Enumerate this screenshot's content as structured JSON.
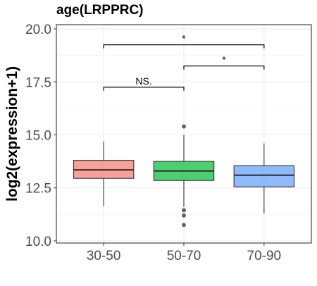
{
  "chart_data": {
    "type": "box",
    "title": "age(LRPPRC)",
    "xlabel": "",
    "ylabel": "log2(expression+1)",
    "ylim": [
      9.9,
      20.2
    ],
    "yticks": [
      10.0,
      12.5,
      15.0,
      17.5,
      20.0
    ],
    "ytick_labels": [
      "10.0",
      "12.5",
      "15.0",
      "17.5",
      "20.0"
    ],
    "grid": true,
    "legend": "none",
    "categories": [
      "30-50",
      "50-70",
      "70-90"
    ],
    "boxes": [
      {
        "category": "30-50",
        "color": "#F8766D",
        "whisker_low": 11.65,
        "q1": 12.95,
        "median": 13.35,
        "q3": 13.8,
        "whisker_high": 14.7,
        "outliers": []
      },
      {
        "category": "50-70",
        "color": "#00BA38",
        "whisker_low": 11.6,
        "q1": 12.85,
        "median": 13.3,
        "q3": 13.75,
        "whisker_high": 15.0,
        "outliers": [
          15.4,
          11.45,
          11.2,
          10.75
        ]
      },
      {
        "category": "70-90",
        "color": "#619CFF",
        "whisker_low": 11.3,
        "q1": 12.55,
        "median": 13.1,
        "q3": 13.55,
        "whisker_high": 14.6,
        "outliers": []
      }
    ],
    "comparisons": [
      {
        "from": "30-50",
        "to": "50-70",
        "y": 17.25,
        "label": "NS."
      },
      {
        "from": "50-70",
        "to": "70-90",
        "y": 18.25,
        "label": "*"
      },
      {
        "from": "30-50",
        "to": "70-90",
        "y": 19.25,
        "label": "*"
      }
    ]
  }
}
